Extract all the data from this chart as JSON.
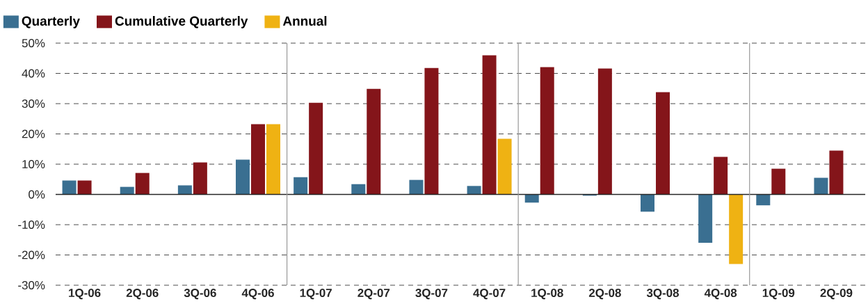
{
  "chart_data": {
    "type": "bar",
    "categories": [
      "1Q-06",
      "2Q-06",
      "3Q-06",
      "4Q-06",
      "1Q-07",
      "2Q-07",
      "3Q-07",
      "4Q-07",
      "1Q-08",
      "2Q-08",
      "3Q-08",
      "4Q-08",
      "1Q-09",
      "2Q-09"
    ],
    "series": [
      {
        "name": "Quarterly",
        "color": "#3a6f91",
        "values": [
          4.6,
          2.5,
          3.0,
          11.5,
          5.7,
          3.4,
          4.8,
          2.8,
          -2.7,
          -0.4,
          -5.7,
          -16.0,
          -3.6,
          5.5
        ]
      },
      {
        "name": "Cumulative Quarterly",
        "color": "#84151a",
        "values": [
          4.6,
          7.1,
          10.6,
          23.2,
          30.3,
          34.9,
          41.8,
          46.0,
          42.1,
          41.6,
          33.8,
          12.4,
          8.5,
          14.5
        ]
      },
      {
        "name": "Annual",
        "color": "#efb213",
        "values": [
          null,
          null,
          null,
          23.2,
          null,
          null,
          null,
          18.4,
          null,
          null,
          null,
          -23.0,
          null,
          null
        ]
      }
    ],
    "ylim": [
      -30,
      50
    ],
    "yticks": [
      {
        "value": -30,
        "label": "-30%"
      },
      {
        "value": -20,
        "label": "-20%"
      },
      {
        "value": -10,
        "label": "-10%"
      },
      {
        "value": 0,
        "label": "0%"
      },
      {
        "value": 10,
        "label": "10%"
      },
      {
        "value": 20,
        "label": "20%"
      },
      {
        "value": 30,
        "label": "30%"
      },
      {
        "value": 40,
        "label": "40%"
      },
      {
        "value": 50,
        "label": "50%"
      }
    ],
    "grid": "y",
    "line_style": "dashed",
    "legend": "top left"
  }
}
